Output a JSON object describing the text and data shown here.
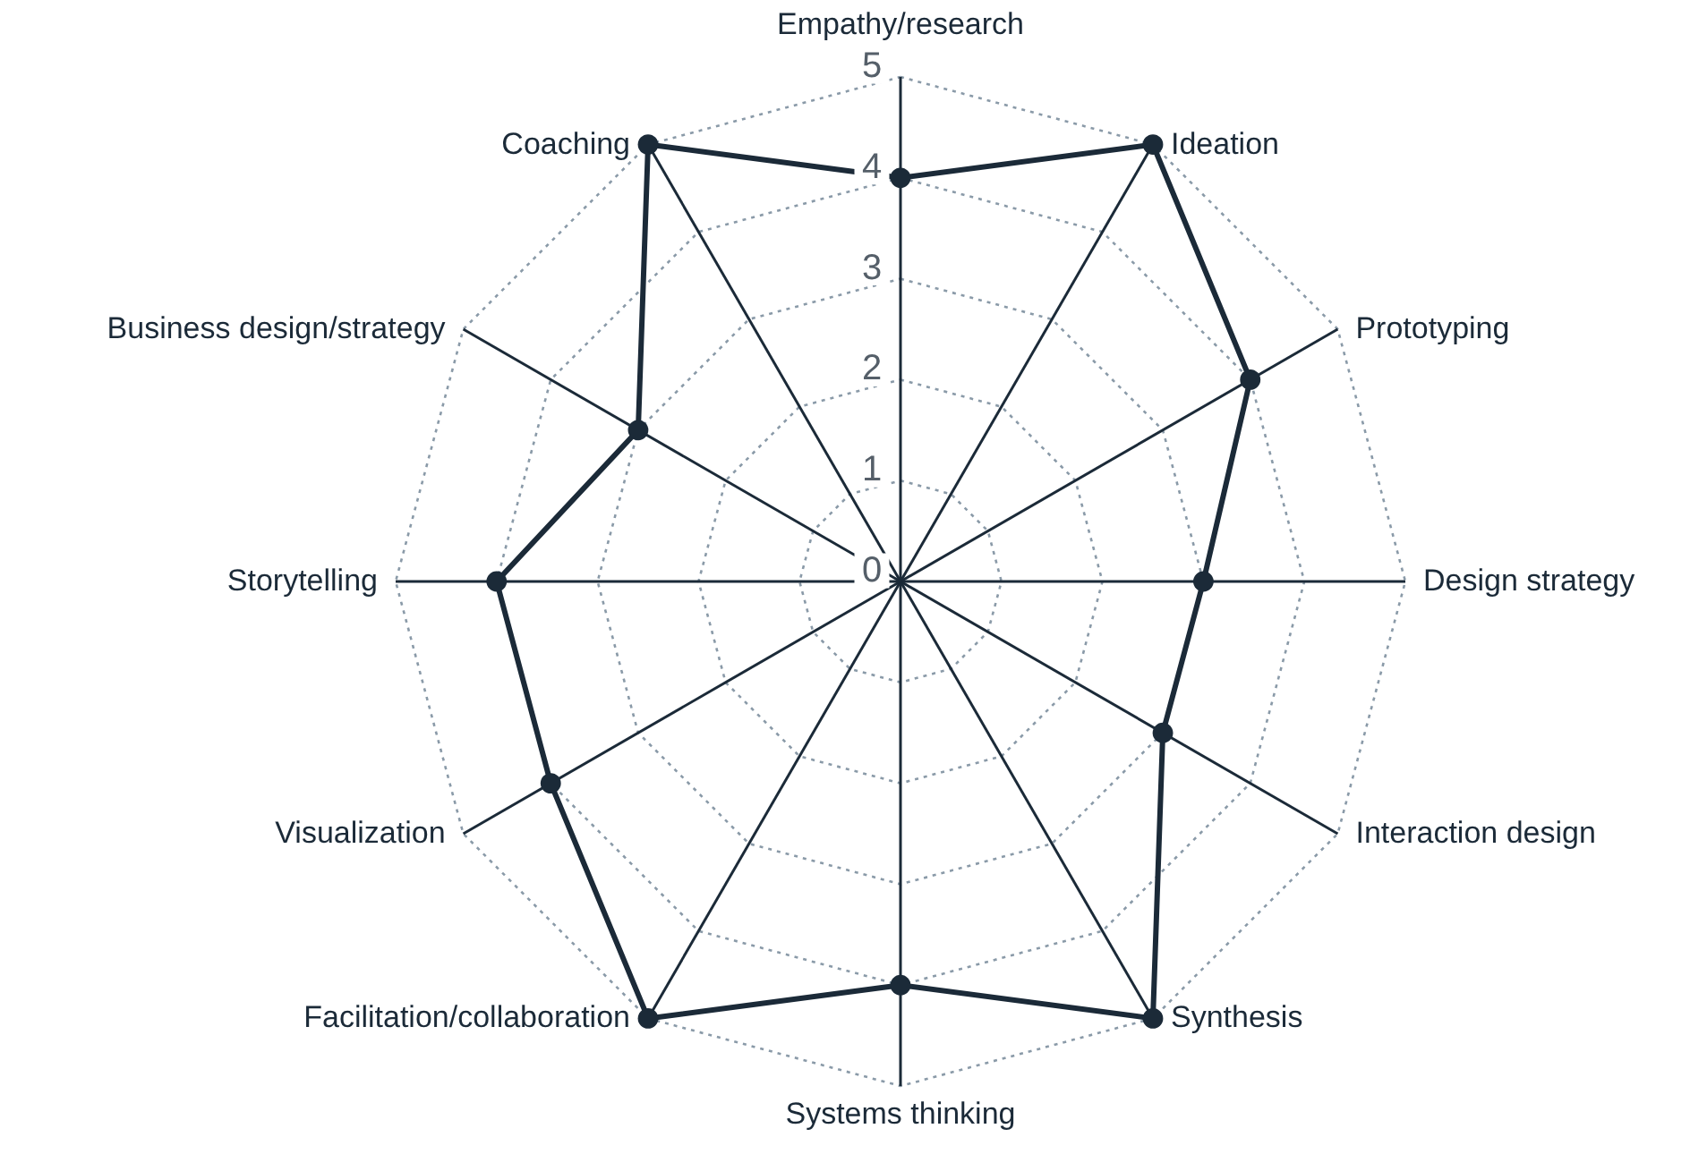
{
  "chart_data": {
    "type": "radar",
    "categories": [
      "Empathy/research",
      "Ideation",
      "Prototyping",
      "Design strategy",
      "Interaction design",
      "Synthesis",
      "Systems thinking",
      "Facilitation/collaboration",
      "Visualization",
      "Storytelling",
      "Business design/strategy",
      "Coaching"
    ],
    "series": [
      {
        "color": "#1b2a38",
        "values": [
          4,
          5,
          4,
          3,
          3,
          5,
          4,
          5,
          4,
          4,
          3,
          5
        ]
      }
    ],
    "ylim": [
      0,
      5
    ],
    "yticks": [
      0,
      1,
      2,
      3,
      4,
      5
    ],
    "grid": true,
    "marker": "circle"
  }
}
